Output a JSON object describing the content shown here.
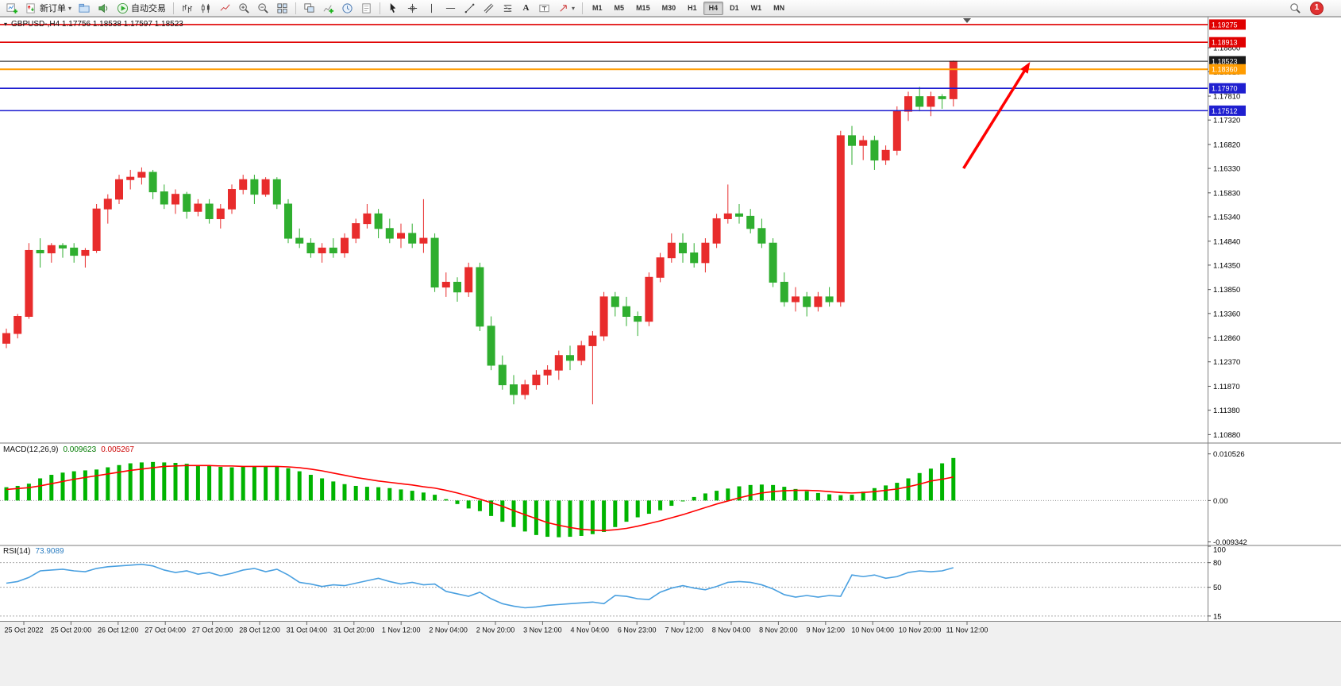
{
  "toolbar": {
    "new_order_label": "新订单",
    "auto_trading_label": "自动交易",
    "text_tool_label": "A",
    "timeframes": [
      "M1",
      "M5",
      "M15",
      "M30",
      "H1",
      "H4",
      "D1",
      "W1",
      "MN"
    ],
    "active_timeframe": "H4",
    "notification_count": "1"
  },
  "chart_header": {
    "symbol_line": "GBPUSD-,H4  1.17756 1.18538 1.17597 1.18523"
  },
  "chart_data": {
    "type": "candlestick",
    "symbol": "GBPUSD-",
    "timeframe": "H4",
    "ohlc_current": {
      "open": "1.17756",
      "high": "1.18538",
      "low": "1.17597",
      "close": "1.18523"
    },
    "colors": {
      "bull": "#e82c2c",
      "bear": "#2fae2f",
      "macd_hist": "#00b400",
      "macd_signal": "#ff0000",
      "rsi_line": "#4aa0e0",
      "line_red": "#e00000",
      "line_blue": "#1f1fd0",
      "line_orange": "#ff9c00",
      "line_black": "#1a1a1a"
    },
    "price_axis_ticks": [
      "1.18800",
      "1.18310",
      "1.17810",
      "1.17320",
      "1.16820",
      "1.16330",
      "1.15830",
      "1.15340",
      "1.14840",
      "1.14350",
      "1.13850",
      "1.13360",
      "1.12860",
      "1.12370",
      "1.11870",
      "1.11380",
      "1.10880"
    ],
    "price_range": {
      "max": 1.1942,
      "min": 1.1074
    },
    "candles": [
      [
        1.1275,
        1.1305,
        1.1265,
        1.1295
      ],
      [
        1.1295,
        1.1335,
        1.1285,
        1.133
      ],
      [
        1.133,
        1.148,
        1.1325,
        1.1465
      ],
      [
        1.1465,
        1.149,
        1.143,
        1.146
      ],
      [
        1.146,
        1.148,
        1.144,
        1.1475
      ],
      [
        1.1475,
        1.148,
        1.145,
        1.147
      ],
      [
        1.147,
        1.148,
        1.144,
        1.1455
      ],
      [
        1.1455,
        1.147,
        1.143,
        1.1465
      ],
      [
        1.1465,
        1.156,
        1.146,
        1.155
      ],
      [
        1.155,
        1.158,
        1.152,
        1.157
      ],
      [
        1.157,
        1.162,
        1.156,
        1.161
      ],
      [
        1.161,
        1.163,
        1.159,
        1.1615
      ],
      [
        1.1615,
        1.1635,
        1.16,
        1.1625
      ],
      [
        1.1625,
        1.163,
        1.157,
        1.1585
      ],
      [
        1.1585,
        1.16,
        1.155,
        1.156
      ],
      [
        1.156,
        1.159,
        1.154,
        1.158
      ],
      [
        1.158,
        1.1585,
        1.153,
        1.1545
      ],
      [
        1.1545,
        1.157,
        1.1535,
        1.156
      ],
      [
        1.156,
        1.157,
        1.152,
        1.153
      ],
      [
        1.153,
        1.156,
        1.151,
        1.155
      ],
      [
        1.155,
        1.16,
        1.154,
        1.159
      ],
      [
        1.159,
        1.162,
        1.158,
        1.161
      ],
      [
        1.161,
        1.162,
        1.156,
        1.158
      ],
      [
        1.158,
        1.1615,
        1.1575,
        1.161
      ],
      [
        1.161,
        1.1615,
        1.155,
        1.156
      ],
      [
        1.156,
        1.157,
        1.148,
        1.149
      ],
      [
        1.149,
        1.151,
        1.147,
        1.148
      ],
      [
        1.148,
        1.149,
        1.145,
        1.146
      ],
      [
        1.146,
        1.148,
        1.144,
        1.147
      ],
      [
        1.147,
        1.149,
        1.145,
        1.146
      ],
      [
        1.146,
        1.15,
        1.145,
        1.149
      ],
      [
        1.149,
        1.153,
        1.148,
        1.152
      ],
      [
        1.152,
        1.156,
        1.151,
        1.154
      ],
      [
        1.154,
        1.155,
        1.149,
        1.151
      ],
      [
        1.151,
        1.153,
        1.148,
        1.149
      ],
      [
        1.149,
        1.152,
        1.147,
        1.15
      ],
      [
        1.15,
        1.152,
        1.147,
        1.148
      ],
      [
        1.148,
        1.157,
        1.146,
        1.149
      ],
      [
        1.149,
        1.15,
        1.138,
        1.139
      ],
      [
        1.139,
        1.142,
        1.137,
        1.14
      ],
      [
        1.14,
        1.141,
        1.136,
        1.138
      ],
      [
        1.138,
        1.144,
        1.137,
        1.143
      ],
      [
        1.143,
        1.144,
        1.13,
        1.131
      ],
      [
        1.131,
        1.133,
        1.122,
        1.123
      ],
      [
        1.123,
        1.125,
        1.118,
        1.119
      ],
      [
        1.119,
        1.121,
        1.115,
        1.117
      ],
      [
        1.117,
        1.12,
        1.116,
        1.119
      ],
      [
        1.119,
        1.122,
        1.118,
        1.121
      ],
      [
        1.121,
        1.123,
        1.119,
        1.122
      ],
      [
        1.122,
        1.126,
        1.12,
        1.125
      ],
      [
        1.125,
        1.127,
        1.122,
        1.124
      ],
      [
        1.124,
        1.128,
        1.123,
        1.127
      ],
      [
        1.127,
        1.13,
        1.115,
        1.129
      ],
      [
        1.129,
        1.138,
        1.128,
        1.137
      ],
      [
        1.137,
        1.138,
        1.133,
        1.135
      ],
      [
        1.135,
        1.137,
        1.131,
        1.133
      ],
      [
        1.133,
        1.134,
        1.129,
        1.132
      ],
      [
        1.132,
        1.142,
        1.131,
        1.141
      ],
      [
        1.141,
        1.146,
        1.14,
        1.145
      ],
      [
        1.145,
        1.15,
        1.144,
        1.148
      ],
      [
        1.148,
        1.15,
        1.144,
        1.146
      ],
      [
        1.146,
        1.148,
        1.143,
        1.144
      ],
      [
        1.144,
        1.149,
        1.142,
        1.148
      ],
      [
        1.148,
        1.154,
        1.147,
        1.153
      ],
      [
        1.153,
        1.16,
        1.152,
        1.154
      ],
      [
        1.154,
        1.156,
        1.152,
        1.1535
      ],
      [
        1.1535,
        1.155,
        1.15,
        1.151
      ],
      [
        1.151,
        1.153,
        1.147,
        1.148
      ],
      [
        1.148,
        1.149,
        1.139,
        1.14
      ],
      [
        1.14,
        1.142,
        1.135,
        1.136
      ],
      [
        1.136,
        1.139,
        1.134,
        1.137
      ],
      [
        1.137,
        1.138,
        1.133,
        1.135
      ],
      [
        1.135,
        1.138,
        1.134,
        1.137
      ],
      [
        1.137,
        1.139,
        1.135,
        1.136
      ],
      [
        1.136,
        1.171,
        1.135,
        1.17
      ],
      [
        1.17,
        1.172,
        1.164,
        1.168
      ],
      [
        1.168,
        1.17,
        1.165,
        1.169
      ],
      [
        1.169,
        1.17,
        1.163,
        1.165
      ],
      [
        1.165,
        1.168,
        1.164,
        1.167
      ],
      [
        1.167,
        1.176,
        1.166,
        1.175
      ],
      [
        1.175,
        1.179,
        1.173,
        1.178
      ],
      [
        1.178,
        1.18,
        1.175,
        1.176
      ],
      [
        1.176,
        1.179,
        1.174,
        1.178
      ],
      [
        1.178,
        1.1785,
        1.1755,
        1.17756
      ],
      [
        1.17756,
        1.18538,
        1.17597,
        1.18523
      ]
    ],
    "hlines": [
      {
        "price": 1.19275,
        "label": "1.19275",
        "color": "#e00000",
        "width": 1.6
      },
      {
        "price": 1.18913,
        "label": "1.18913",
        "color": "#e00000",
        "width": 1.6
      },
      {
        "price": 1.18523,
        "label": "1.18523",
        "color": "#1a1a1a",
        "width": 1
      },
      {
        "price": 1.1836,
        "label": "1.18360",
        "color": "#ff9c00",
        "width": 2
      },
      {
        "price": 1.1797,
        "label": "1.17970",
        "color": "#1f1fd0",
        "width": 1.6
      },
      {
        "price": 1.17512,
        "label": "1.17512",
        "color": "#1f1fd0",
        "width": 1.6
      }
    ],
    "trend_arrow": {
      "from_idx": 84.9,
      "from_price": 1.1633,
      "to_idx": 90.8,
      "to_price": 1.1851,
      "color": "#ff0000"
    },
    "macd": {
      "label": "MACD(12,26,9)",
      "value_main": "0.009623",
      "value_signal": "0.005267",
      "axis_labels": [
        "0.010526",
        "0.00",
        "-0.009342"
      ],
      "hist": [
        0.003,
        0.0033,
        0.0038,
        0.005,
        0.0058,
        0.0063,
        0.0066,
        0.0068,
        0.007,
        0.0075,
        0.008,
        0.0084,
        0.0086,
        0.0087,
        0.0086,
        0.0085,
        0.0083,
        0.008,
        0.0078,
        0.0076,
        0.0075,
        0.0076,
        0.0077,
        0.0077,
        0.0076,
        0.0073,
        0.0066,
        0.0058,
        0.005,
        0.0043,
        0.0037,
        0.0033,
        0.0031,
        0.003,
        0.0028,
        0.0025,
        0.0022,
        0.0018,
        0.0013,
        0.0003,
        -0.0008,
        -0.0018,
        -0.0024,
        -0.0035,
        -0.0048,
        -0.006,
        -0.007,
        -0.0078,
        -0.0082,
        -0.0083,
        -0.0082,
        -0.008,
        -0.0076,
        -0.0071,
        -0.006,
        -0.0048,
        -0.0038,
        -0.003,
        -0.0022,
        -0.0012,
        -0.0002,
        0.0008,
        0.0016,
        0.0022,
        0.0027,
        0.0032,
        0.0035,
        0.0036,
        0.0035,
        0.0031,
        0.0026,
        0.0021,
        0.0017,
        0.0014,
        0.0012,
        0.0013,
        0.002,
        0.0028,
        0.0034,
        0.004,
        0.005,
        0.0062,
        0.0072,
        0.0084,
        0.0096
      ],
      "signal": [
        0.0025,
        0.0027,
        0.0029,
        0.0033,
        0.0038,
        0.0043,
        0.0048,
        0.0052,
        0.0056,
        0.006,
        0.0064,
        0.0068,
        0.0071,
        0.0074,
        0.0077,
        0.0078,
        0.0079,
        0.0079,
        0.0079,
        0.0078,
        0.0078,
        0.0077,
        0.0077,
        0.0077,
        0.0077,
        0.0076,
        0.0074,
        0.0071,
        0.0067,
        0.0062,
        0.0057,
        0.0052,
        0.0048,
        0.0044,
        0.0041,
        0.0038,
        0.0035,
        0.0031,
        0.0028,
        0.0023,
        0.0017,
        0.001,
        0.0003,
        -0.0005,
        -0.0013,
        -0.0023,
        -0.0032,
        -0.0041,
        -0.005,
        -0.0056,
        -0.0061,
        -0.0065,
        -0.0067,
        -0.0068,
        -0.0066,
        -0.0063,
        -0.0058,
        -0.0052,
        -0.0046,
        -0.0039,
        -0.0032,
        -0.0024,
        -0.0016,
        -0.0008,
        -0.0001,
        0.0006,
        0.0012,
        0.0017,
        0.002,
        0.0022,
        0.0023,
        0.0023,
        0.0022,
        0.002,
        0.0018,
        0.0017,
        0.0018,
        0.002,
        0.0023,
        0.0026,
        0.0031,
        0.0037,
        0.0044,
        0.0048,
        0.0053
      ]
    },
    "rsi": {
      "label": "RSI(14)",
      "value": "73.9089",
      "levels": [
        80,
        50,
        15
      ],
      "axis_labels": [
        "100",
        "80",
        "50",
        "15"
      ],
      "values": [
        55,
        57,
        62,
        70,
        71,
        72,
        70,
        69,
        73,
        75,
        76,
        77,
        78,
        76,
        71,
        68,
        70,
        66,
        68,
        64,
        67,
        71,
        73,
        69,
        72,
        65,
        56,
        54,
        51,
        53,
        52,
        55,
        58,
        61,
        57,
        54,
        56,
        53,
        54,
        45,
        42,
        39,
        44,
        36,
        30,
        27,
        25,
        26,
        28,
        29,
        30,
        31,
        32,
        30,
        40,
        39,
        36,
        35,
        44,
        49,
        52,
        49,
        47,
        51,
        56,
        57,
        56,
        53,
        48,
        41,
        38,
        40,
        38,
        40,
        39,
        65,
        63,
        65,
        61,
        63,
        68,
        70,
        69,
        70,
        73.9
      ]
    },
    "time_labels": [
      "25 Oct 2022",
      "25 Oct 20:00",
      "26 Oct 12:00",
      "27 Oct 04:00",
      "27 Oct 20:00",
      "28 Oct 12:00",
      "31 Oct 04:00",
      "31 Oct 20:00",
      "1 Nov 12:00",
      "2 Nov 04:00",
      "2 Nov 20:00",
      "3 Nov 12:00",
      "4 Nov 04:00",
      "6 Nov 23:00",
      "7 Nov 12:00",
      "8 Nov 04:00",
      "8 Nov 20:00",
      "9 Nov 12:00",
      "10 Nov 04:00",
      "10 Nov 20:00",
      "11 Nov 12:00"
    ]
  }
}
